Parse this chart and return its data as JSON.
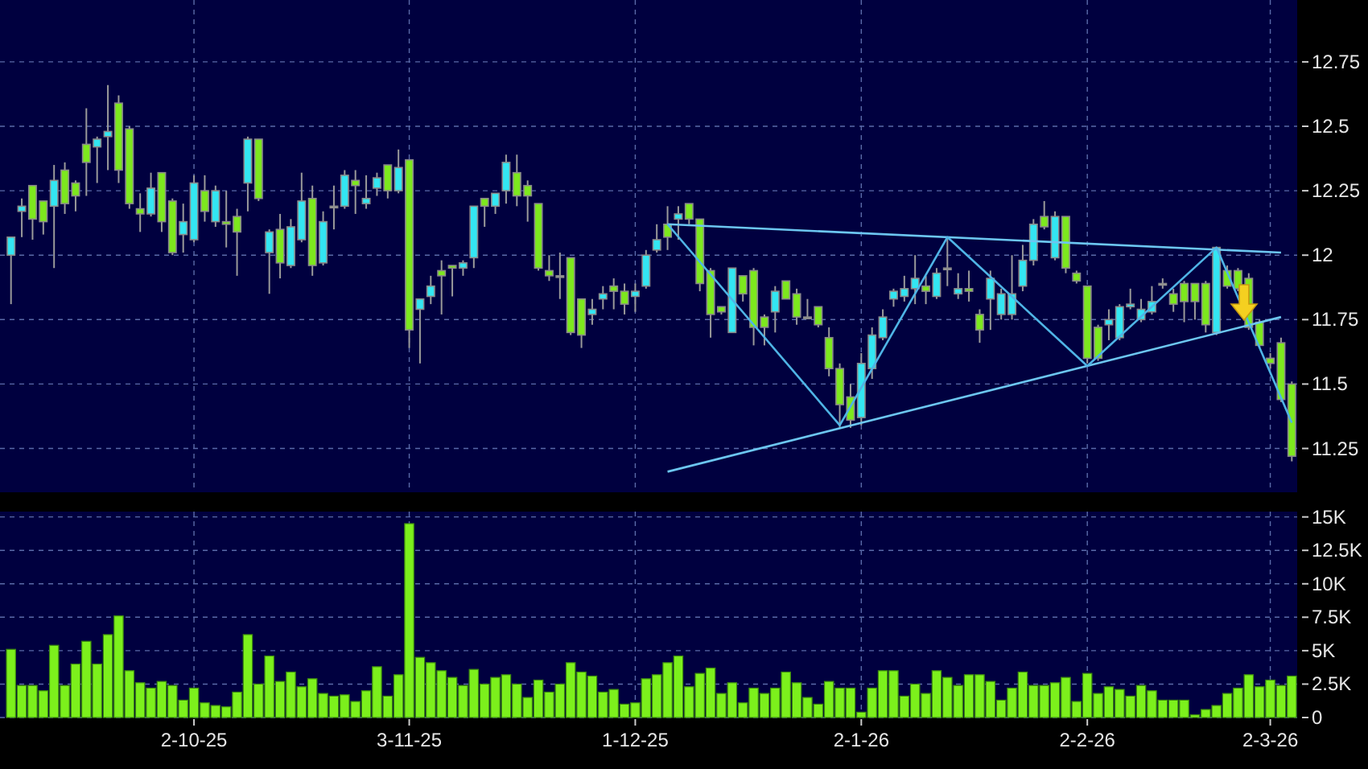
{
  "chart_data": [
    {
      "type": "candlestick",
      "categories": [
        null,
        null,
        null,
        null,
        null,
        null,
        null,
        null,
        null,
        null,
        null,
        null,
        null,
        null,
        null,
        null,
        null,
        null,
        null,
        null,
        null,
        null,
        null,
        null,
        null,
        null,
        null,
        null,
        null,
        null,
        null,
        null,
        null,
        null,
        null,
        null,
        null,
        null,
        null,
        null,
        null,
        null,
        null,
        null,
        null,
        null,
        null,
        null,
        null,
        null,
        null,
        null,
        null,
        null,
        null,
        null,
        null,
        null,
        null,
        null,
        null,
        null,
        null,
        null,
        null,
        null,
        null,
        null,
        null,
        null,
        null,
        null,
        null,
        null,
        null,
        null,
        null,
        null,
        null,
        null,
        null,
        null,
        null,
        null,
        null,
        null,
        null,
        null,
        null,
        null,
        null,
        null,
        null,
        null,
        null,
        null,
        null,
        null,
        null,
        null,
        null,
        null,
        null,
        null,
        null,
        null,
        null,
        null,
        null,
        null,
        null,
        null,
        null,
        null,
        null,
        null,
        null,
        null,
        null,
        null
      ],
      "ohlc": [
        [
          12.0,
          12.07,
          11.81,
          12.07
        ],
        [
          12.17,
          12.22,
          12.07,
          12.19
        ],
        [
          12.27,
          12.27,
          12.06,
          12.14
        ],
        [
          12.21,
          12.21,
          12.08,
          12.13
        ],
        [
          12.19,
          12.35,
          11.95,
          12.29
        ],
        [
          12.33,
          12.36,
          12.16,
          12.2
        ],
        [
          12.28,
          12.29,
          12.17,
          12.23
        ],
        [
          12.43,
          12.57,
          12.23,
          12.36
        ],
        [
          12.42,
          12.46,
          12.28,
          12.45
        ],
        [
          12.46,
          12.66,
          12.33,
          12.48
        ],
        [
          12.59,
          12.62,
          12.28,
          12.33
        ],
        [
          12.49,
          12.5,
          12.18,
          12.2
        ],
        [
          12.18,
          12.24,
          12.09,
          12.16
        ],
        [
          12.16,
          12.32,
          12.15,
          12.26
        ],
        [
          12.32,
          12.32,
          12.09,
          12.13
        ],
        [
          12.21,
          12.22,
          12.0,
          12.01
        ],
        [
          12.08,
          12.2,
          12.01,
          12.13
        ],
        [
          12.06,
          12.31,
          12.05,
          12.28
        ],
        [
          12.25,
          12.31,
          12.13,
          12.17
        ],
        [
          12.13,
          12.27,
          12.11,
          12.25
        ],
        [
          12.13,
          12.25,
          12.03,
          12.12
        ],
        [
          12.15,
          12.18,
          11.92,
          12.09
        ],
        [
          12.28,
          12.46,
          12.17,
          12.45
        ],
        [
          12.45,
          12.45,
          12.21,
          12.22
        ],
        [
          12.01,
          12.1,
          11.85,
          12.09
        ],
        [
          12.1,
          12.16,
          11.91,
          11.97
        ],
        [
          11.96,
          12.14,
          11.95,
          12.11
        ],
        [
          12.06,
          12.32,
          12.05,
          12.21
        ],
        [
          12.22,
          12.27,
          11.92,
          11.96
        ],
        [
          11.97,
          12.17,
          11.96,
          12.13
        ],
        [
          12.19,
          12.27,
          12.1,
          12.19
        ],
        [
          12.19,
          12.33,
          12.18,
          12.31
        ],
        [
          12.29,
          12.33,
          12.16,
          12.27
        ],
        [
          12.2,
          12.31,
          12.18,
          12.22
        ],
        [
          12.26,
          12.32,
          12.23,
          12.3
        ],
        [
          12.35,
          12.35,
          12.22,
          12.25
        ],
        [
          12.25,
          12.41,
          12.24,
          12.34
        ],
        [
          12.37,
          12.37,
          11.64,
          11.71
        ],
        [
          11.79,
          11.83,
          11.58,
          11.83
        ],
        [
          11.84,
          11.92,
          11.81,
          11.88
        ],
        [
          11.94,
          11.98,
          11.77,
          11.92
        ],
        [
          11.96,
          11.96,
          11.84,
          11.95
        ],
        [
          11.95,
          11.98,
          11.92,
          11.97
        ],
        [
          11.99,
          12.19,
          11.95,
          12.19
        ],
        [
          12.22,
          12.22,
          12.11,
          12.19
        ],
        [
          12.19,
          12.24,
          12.16,
          12.24
        ],
        [
          12.25,
          12.39,
          12.2,
          12.36
        ],
        [
          12.32,
          12.39,
          12.19,
          12.23
        ],
        [
          12.27,
          12.29,
          12.13,
          12.23
        ],
        [
          12.2,
          12.2,
          11.94,
          11.95
        ],
        [
          11.94,
          12.0,
          11.9,
          11.92
        ],
        [
          11.92,
          12.01,
          11.83,
          11.92
        ],
        [
          11.99,
          11.99,
          11.69,
          11.7
        ],
        [
          11.83,
          11.83,
          11.64,
          11.69
        ],
        [
          11.77,
          11.83,
          11.73,
          11.79
        ],
        [
          11.83,
          11.88,
          11.79,
          11.85
        ],
        [
          11.88,
          11.91,
          11.79,
          11.86
        ],
        [
          11.86,
          11.89,
          11.77,
          11.81
        ],
        [
          11.84,
          11.89,
          11.78,
          11.86
        ],
        [
          11.88,
          12.02,
          11.87,
          12.0
        ],
        [
          12.02,
          12.12,
          12.01,
          12.06
        ],
        [
          12.12,
          12.19,
          12.02,
          12.07
        ],
        [
          12.14,
          12.19,
          12.06,
          12.16
        ],
        [
          12.2,
          12.2,
          12.12,
          12.14
        ],
        [
          12.14,
          12.14,
          11.86,
          11.89
        ],
        [
          11.94,
          11.95,
          11.68,
          11.77
        ],
        [
          11.8,
          11.8,
          11.77,
          11.78
        ],
        [
          11.7,
          11.95,
          11.7,
          11.95
        ],
        [
          11.92,
          11.92,
          11.82,
          11.85
        ],
        [
          11.94,
          11.95,
          11.65,
          11.72
        ],
        [
          11.76,
          11.77,
          11.65,
          11.72
        ],
        [
          11.78,
          11.88,
          11.7,
          11.86
        ],
        [
          11.9,
          11.9,
          11.83,
          11.83
        ],
        [
          11.85,
          11.87,
          11.73,
          11.76
        ],
        [
          11.76,
          11.83,
          11.76,
          11.76
        ],
        [
          11.8,
          11.8,
          11.72,
          11.73
        ],
        [
          11.68,
          11.72,
          11.53,
          11.56
        ],
        [
          11.56,
          11.58,
          11.33,
          11.42
        ],
        [
          11.45,
          11.5,
          11.33,
          11.36
        ],
        [
          11.37,
          11.62,
          11.34,
          11.58
        ],
        [
          11.56,
          11.72,
          11.52,
          11.69
        ],
        [
          11.68,
          11.79,
          11.67,
          11.76
        ],
        [
          11.83,
          11.87,
          11.8,
          11.86
        ],
        [
          11.84,
          11.92,
          11.82,
          11.87
        ],
        [
          11.87,
          12.0,
          11.81,
          11.91
        ],
        [
          11.88,
          11.92,
          11.81,
          11.86
        ],
        [
          11.84,
          11.95,
          11.83,
          11.93
        ],
        [
          11.95,
          12.07,
          11.88,
          11.95
        ],
        [
          11.85,
          11.93,
          11.83,
          11.87
        ],
        [
          11.87,
          11.94,
          11.82,
          11.86
        ],
        [
          11.77,
          11.79,
          11.66,
          11.71
        ],
        [
          11.83,
          11.94,
          11.71,
          11.91
        ],
        [
          11.77,
          11.87,
          11.75,
          11.85
        ],
        [
          11.77,
          12.0,
          11.75,
          11.85
        ],
        [
          11.88,
          12.04,
          11.86,
          11.98
        ],
        [
          11.98,
          12.14,
          11.96,
          12.12
        ],
        [
          12.15,
          12.21,
          12.1,
          12.11
        ],
        [
          11.99,
          12.17,
          11.98,
          12.15
        ],
        [
          12.15,
          12.15,
          11.93,
          11.95
        ],
        [
          11.93,
          11.94,
          11.89,
          11.9
        ],
        [
          11.88,
          11.88,
          11.58,
          11.6
        ],
        [
          11.72,
          11.73,
          11.59,
          11.6
        ],
        [
          11.73,
          11.79,
          11.67,
          11.75
        ],
        [
          11.68,
          11.81,
          11.67,
          11.8
        ],
        [
          11.8,
          11.87,
          11.79,
          11.81
        ],
        [
          11.75,
          11.83,
          11.74,
          11.79
        ],
        [
          11.78,
          11.88,
          11.77,
          11.82
        ],
        [
          11.89,
          11.91,
          11.87,
          11.89
        ],
        [
          11.85,
          11.87,
          11.78,
          11.81
        ],
        [
          11.89,
          11.9,
          11.74,
          11.82
        ],
        [
          11.89,
          11.89,
          11.75,
          11.82
        ],
        [
          11.89,
          11.9,
          11.7,
          11.73
        ],
        [
          11.7,
          12.03,
          11.69,
          12.03
        ],
        [
          11.94,
          11.96,
          11.87,
          11.88
        ],
        [
          11.94,
          11.95,
          11.86,
          11.87
        ],
        [
          11.91,
          11.93,
          11.71,
          11.72
        ],
        [
          11.74,
          11.75,
          11.64,
          11.65
        ],
        [
          11.6,
          11.62,
          11.56,
          11.58
        ],
        [
          11.66,
          11.68,
          11.43,
          11.44
        ],
        [
          11.5,
          11.51,
          11.2,
          11.22
        ]
      ],
      "colors": [
        "#33e6f2",
        "#33e6f2",
        "#7de81e",
        "#7de81e",
        "#33e6f2",
        "#7de81e",
        "#7de81e",
        "#7de81e",
        "#33e6f2",
        "#33e6f2",
        "#7de81e",
        "#7de81e",
        "#7de81e",
        "#33e6f2",
        "#7de81e",
        "#7de81e",
        "#33e6f2",
        "#33e6f2",
        "#7de81e",
        "#33e6f2",
        "#7de81e",
        "#7de81e",
        "#33e6f2",
        "#7de81e",
        "#33e6f2",
        "#7de81e",
        "#33e6f2",
        "#33e6f2",
        "#7de81e",
        "#33e6f2",
        "#a8a8a8",
        "#33e6f2",
        "#7de81e",
        "#33e6f2",
        "#33e6f2",
        "#7de81e",
        "#33e6f2",
        "#7de81e",
        "#33e6f2",
        "#33e6f2",
        "#7de81e",
        "#7de81e",
        "#33e6f2",
        "#33e6f2",
        "#7de81e",
        "#33e6f2",
        "#33e6f2",
        "#7de81e",
        "#7de81e",
        "#7de81e",
        "#7de81e",
        "#a8a8a8",
        "#7de81e",
        "#7de81e",
        "#33e6f2",
        "#33e6f2",
        "#7de81e",
        "#7de81e",
        "#33e6f2",
        "#33e6f2",
        "#33e6f2",
        "#7de81e",
        "#33e6f2",
        "#7de81e",
        "#7de81e",
        "#7de81e",
        "#7de81e",
        "#33e6f2",
        "#7de81e",
        "#7de81e",
        "#7de81e",
        "#33e6f2",
        "#7de81e",
        "#7de81e",
        "#a8a8a8",
        "#7de81e",
        "#7de81e",
        "#7de81e",
        "#7de81e",
        "#33e6f2",
        "#33e6f2",
        "#33e6f2",
        "#33e6f2",
        "#33e6f2",
        "#33e6f2",
        "#7de81e",
        "#33e6f2",
        "#a8a8a8",
        "#33e6f2",
        "#7de81e",
        "#7de81e",
        "#33e6f2",
        "#33e6f2",
        "#33e6f2",
        "#33e6f2",
        "#33e6f2",
        "#7de81e",
        "#33e6f2",
        "#7de81e",
        "#7de81e",
        "#7de81e",
        "#7de81e",
        "#33e6f2",
        "#33e6f2",
        "#33e6f2",
        "#33e6f2",
        "#33e6f2",
        "#a8a8a8",
        "#7de81e",
        "#7de81e",
        "#7de81e",
        "#7de81e",
        "#33e6f2",
        "#7de81e",
        "#7de81e",
        "#7de81e",
        "#7de81e",
        "#7de81e",
        "#7de81e",
        "#7de81e"
      ],
      "series": [
        {
          "type": "line",
          "color": "#6cc6f0",
          "values": [
            null,
            null,
            null,
            null,
            null,
            null,
            null,
            null,
            null,
            null,
            null,
            null,
            null,
            null,
            null,
            null,
            null,
            null,
            null,
            null,
            null,
            null,
            null,
            null,
            null,
            null,
            null,
            null,
            null,
            null,
            null,
            null,
            null,
            null,
            null,
            null,
            null,
            null,
            null,
            null,
            null,
            null,
            null,
            null,
            null,
            null,
            null,
            null,
            null,
            null,
            null,
            null,
            null,
            null,
            null,
            null,
            null,
            null,
            null,
            null,
            null,
            12.12,
            null,
            null,
            null,
            null,
            null,
            null,
            null,
            null,
            null,
            null,
            null,
            null,
            null,
            null,
            null,
            null,
            null,
            null,
            null,
            null,
            null,
            null,
            null,
            null,
            null,
            null,
            null,
            null,
            null,
            null,
            null,
            null,
            null,
            null,
            null,
            null,
            null,
            null,
            null,
            null,
            null,
            null,
            null,
            null,
            null,
            null,
            null,
            null,
            null,
            null,
            null,
            null,
            null,
            null,
            null,
            null,
            12.01,
            null
          ]
        },
        {
          "type": "line",
          "color": "#6cc6f0",
          "values": [
            null,
            null,
            null,
            null,
            null,
            null,
            null,
            null,
            null,
            null,
            null,
            null,
            null,
            null,
            null,
            null,
            null,
            null,
            null,
            null,
            null,
            null,
            null,
            null,
            null,
            null,
            null,
            null,
            null,
            null,
            null,
            null,
            null,
            null,
            null,
            null,
            null,
            null,
            null,
            null,
            null,
            null,
            null,
            null,
            null,
            null,
            null,
            null,
            null,
            null,
            null,
            null,
            null,
            null,
            null,
            null,
            null,
            null,
            null,
            null,
            null,
            11.16,
            null,
            null,
            null,
            null,
            null,
            null,
            null,
            null,
            null,
            null,
            null,
            null,
            null,
            null,
            null,
            null,
            null,
            null,
            null,
            null,
            null,
            null,
            null,
            null,
            null,
            null,
            null,
            null,
            null,
            null,
            null,
            null,
            null,
            null,
            null,
            null,
            null,
            null,
            null,
            null,
            null,
            null,
            null,
            null,
            null,
            null,
            null,
            null,
            null,
            null,
            null,
            null,
            null,
            null,
            null,
            null,
            11.76,
            null
          ]
        },
        {
          "type": "line",
          "color": "#4fb4e6",
          "values": [
            null,
            null,
            null,
            null,
            null,
            null,
            null,
            null,
            null,
            null,
            null,
            null,
            null,
            null,
            null,
            null,
            null,
            null,
            null,
            null,
            null,
            null,
            null,
            null,
            null,
            null,
            null,
            null,
            null,
            null,
            null,
            null,
            null,
            null,
            null,
            null,
            null,
            null,
            null,
            null,
            null,
            null,
            null,
            null,
            null,
            null,
            null,
            null,
            null,
            null,
            null,
            null,
            null,
            null,
            null,
            null,
            null,
            null,
            null,
            null,
            null,
            12.12,
            null,
            null,
            null,
            null,
            null,
            null,
            null,
            null,
            null,
            null,
            null,
            null,
            null,
            null,
            null,
            11.34,
            null,
            null,
            null,
            null,
            null,
            null,
            null,
            null,
            null,
            12.07,
            null,
            null,
            null,
            null,
            null,
            null,
            null,
            null,
            null,
            null,
            null,
            null,
            11.57,
            null,
            null,
            null,
            null,
            null,
            null,
            null,
            null,
            null,
            null,
            null,
            12.03,
            null,
            null,
            null,
            null,
            null,
            null,
            11.35
          ]
        }
      ],
      "ylim": [
        11.08,
        12.99
      ],
      "yticks": [
        11.25,
        11.5,
        11.75,
        12,
        12.25,
        12.5,
        12.75
      ],
      "grid": true
    },
    {
      "type": "bar",
      "categories": [
        null,
        null,
        null,
        null,
        null,
        null,
        null,
        null,
        null,
        null,
        null,
        null,
        null,
        null,
        null,
        null,
        null,
        "2-10-25",
        null,
        null,
        null,
        null,
        null,
        null,
        null,
        null,
        null,
        null,
        null,
        null,
        null,
        null,
        null,
        null,
        null,
        null,
        null,
        "3-11-25",
        null,
        null,
        null,
        null,
        null,
        null,
        null,
        null,
        null,
        null,
        null,
        null,
        null,
        null,
        null,
        null,
        null,
        null,
        null,
        null,
        "1-12-25",
        null,
        null,
        null,
        null,
        null,
        null,
        null,
        null,
        null,
        null,
        null,
        null,
        null,
        null,
        null,
        null,
        null,
        null,
        null,
        null,
        "2-1-26",
        null,
        null,
        null,
        null,
        null,
        null,
        null,
        null,
        null,
        null,
        null,
        null,
        null,
        null,
        null,
        null,
        null,
        null,
        null,
        null,
        "2-2-26",
        null,
        null,
        null,
        null,
        null,
        null,
        null,
        null,
        null,
        null,
        null,
        null,
        null,
        null,
        null,
        null,
        "2-3-26",
        null,
        null
      ],
      "values": [
        5100,
        2400,
        2400,
        2000,
        5400,
        2400,
        4000,
        5700,
        4000,
        6200,
        7600,
        3500,
        2600,
        2200,
        2700,
        2400,
        1300,
        2200,
        1100,
        900,
        800,
        1900,
        6200,
        2500,
        4600,
        2700,
        3400,
        2300,
        2900,
        1800,
        1600,
        1700,
        1200,
        2000,
        3800,
        1600,
        3200,
        14500,
        4500,
        4100,
        3500,
        3000,
        2400,
        3600,
        2500,
        3000,
        3200,
        2500,
        1500,
        2800,
        1900,
        2500,
        4100,
        3400,
        3100,
        1900,
        2100,
        1000,
        1100,
        2900,
        3200,
        4100,
        4600,
        2300,
        3300,
        3700,
        1800,
        2600,
        1100,
        2200,
        1800,
        2200,
        3400,
        2600,
        1500,
        1000,
        2700,
        2200,
        2200,
        400,
        2200,
        3500,
        3500,
        1600,
        2500,
        1800,
        3500,
        3000,
        2400,
        3200,
        3200,
        2700,
        1300,
        2200,
        3400,
        2400,
        2400,
        2600,
        3000,
        1200,
        3300,
        1800,
        2300,
        2100,
        1600,
        2400,
        2000,
        1300,
        1300,
        1300,
        200,
        600,
        900,
        1800,
        2200,
        3200,
        2300,
        2800,
        2400,
        3100
      ],
      "color": "#7cf01c",
      "ylim": [
        0,
        15400
      ],
      "yticks": [
        0,
        {
          "value": 2500,
          "label": "2.5K"
        },
        {
          "value": 5000,
          "label": "5K"
        },
        {
          "value": 7500,
          "label": "7.5K"
        },
        {
          "value": 10000,
          "label": "10K"
        },
        {
          "value": 12500,
          "label": "12.5K"
        },
        {
          "value": 15000,
          "label": "15K"
        }
      ],
      "grid": true
    }
  ]
}
